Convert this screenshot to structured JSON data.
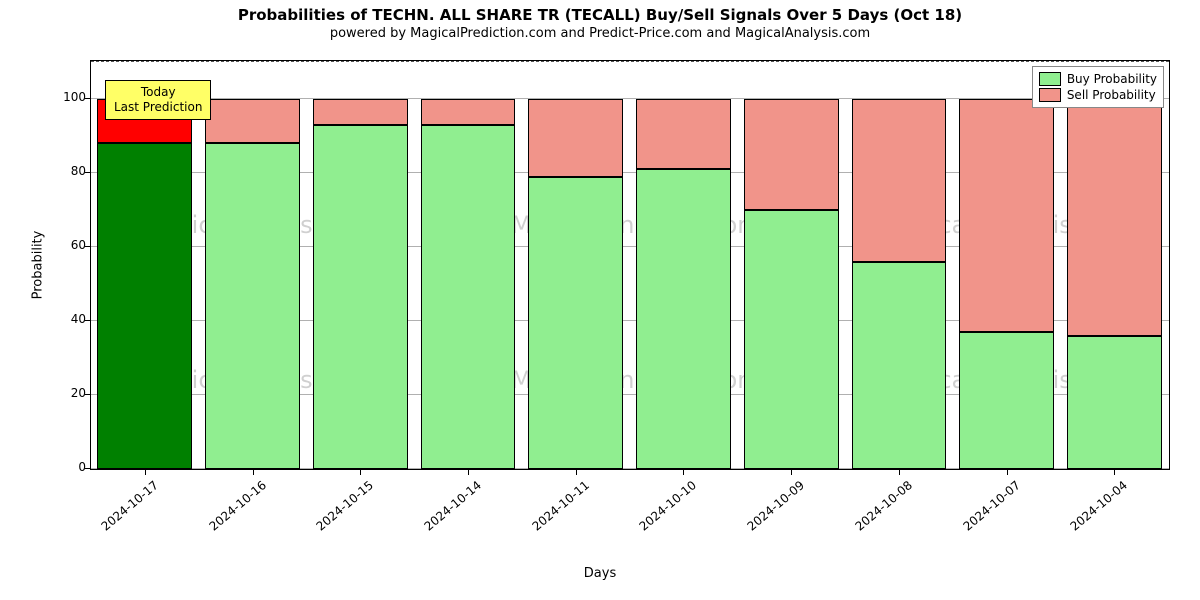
{
  "chart": {
    "type": "stacked-bar",
    "title": "Probabilities of TECHN. ALL SHARE TR (TECALL) Buy/Sell Signals Over 5 Days (Oct 18)",
    "subtitle": "powered by MagicalPrediction.com and Predict-Price.com and MagicalAnalysis.com",
    "xlabel": "Days",
    "ylabel": "Probability",
    "title_fontsize": 15,
    "subtitle_fontsize": 13,
    "label_fontsize": 13,
    "tick_fontsize": 12,
    "background_color": "#ffffff",
    "grid_color": "#b0b0b0",
    "frame_color": "#000000",
    "ylim": [
      0,
      110
    ],
    "yticks": [
      0,
      20,
      40,
      60,
      80,
      100
    ],
    "max_line_value": 110,
    "max_line_color": "#555555",
    "bar_border_color": "#000000",
    "colors": {
      "buy": "#90ee90",
      "sell": "#f1948a",
      "buy_today": "#008000",
      "sell_today": "#ff0000",
      "annotation_bg": "#ffff66"
    },
    "legend": {
      "items": [
        {
          "label": "Buy Probability",
          "swatch": "#90ee90"
        },
        {
          "label": "Sell Probability",
          "swatch": "#f1948a"
        }
      ]
    },
    "annotation": {
      "line1": "Today",
      "line2": "Last Prediction"
    },
    "watermarks": [
      "MagicalAnalysis.com",
      "MagicalAnalysis.com",
      "MagicalAnalysis.com",
      "MagicalAnalysis.com",
      "MagicalAnalysis.com",
      "MagicalAnalysis.com"
    ],
    "categories": [
      "2024-10-17",
      "2024-10-16",
      "2024-10-15",
      "2024-10-14",
      "2024-10-11",
      "2024-10-10",
      "2024-10-09",
      "2024-10-08",
      "2024-10-07",
      "2024-10-04"
    ],
    "buy_values": [
      88,
      88,
      93,
      93,
      79,
      81,
      70,
      56,
      37,
      36
    ],
    "sell_values": [
      12,
      12,
      7,
      7,
      21,
      19,
      30,
      44,
      63,
      64
    ],
    "today_index": 0
  }
}
